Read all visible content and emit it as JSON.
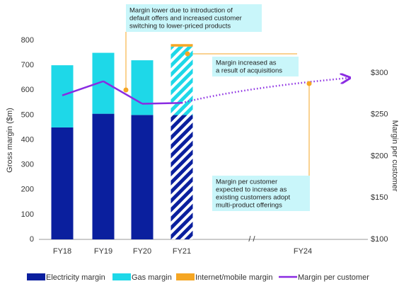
{
  "chart_data": {
    "type": "bar",
    "categories": [
      "FY18",
      "FY19",
      "FY20",
      "FY21",
      "FY24"
    ],
    "y_label": "Gross margin ($m)",
    "y2_label": "Margin per customer",
    "ylim": [
      0,
      800
    ],
    "yticks": [
      0,
      100,
      200,
      300,
      400,
      500,
      600,
      700,
      800
    ],
    "y2lim": [
      100,
      300
    ],
    "y2ticks": [
      {
        "value": 100,
        "label": "$100"
      },
      {
        "value": 150,
        "label": "$150"
      },
      {
        "value": 200,
        "label": "$200"
      },
      {
        "value": 250,
        "label": "$250"
      },
      {
        "value": 300,
        "label": "$300"
      }
    ],
    "hatched": "FY21",
    "dotted_from": "FY21",
    "series": [
      {
        "name": "Electricity margin",
        "color": "#0a1f9e",
        "values": [
          450,
          505,
          500,
          500,
          null
        ]
      },
      {
        "name": "Gas margin",
        "color": "#1ed8e8",
        "values": [
          250,
          245,
          220,
          275,
          null
        ]
      },
      {
        "name": "Internet/mobile margin",
        "color": "#f5a623",
        "values": [
          null,
          null,
          null,
          10,
          null
        ]
      },
      {
        "name": "Margin per customer",
        "type": "line",
        "axis": "y2",
        "color": "#8a2be2",
        "values": [
          273,
          290,
          263,
          264,
          294
        ]
      }
    ],
    "annotations": [
      {
        "lines": [
          "Margin lower due to introduction of",
          "default offers and increased customer",
          "switching to lower-priced products"
        ]
      },
      {
        "lines": [
          "Margin increased as",
          "a result of acquisitions"
        ]
      },
      {
        "lines": [
          "Margin per customer",
          "expected to increase as",
          "existing customers adopt",
          "multi-product offerings"
        ]
      }
    ]
  }
}
